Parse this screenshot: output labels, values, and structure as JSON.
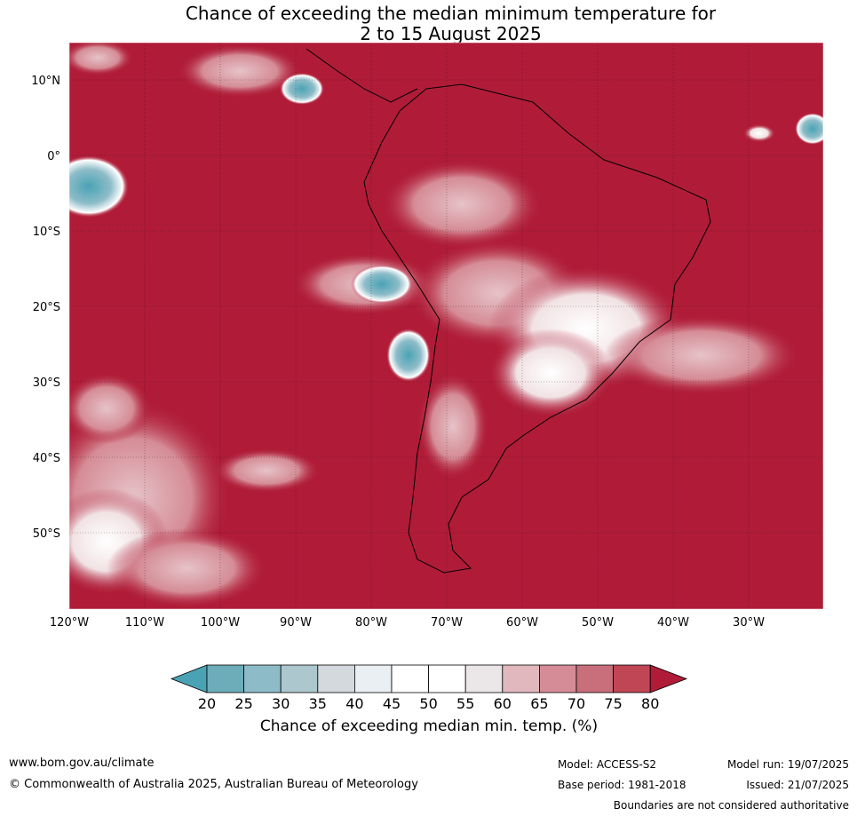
{
  "title": {
    "line1": "Chance of exceeding the median minimum temperature for",
    "line2": "2 to 15 August 2025"
  },
  "map": {
    "region": "South America",
    "lat_labels": [
      "10°N",
      "0°",
      "10°S",
      "20°S",
      "30°S",
      "40°S",
      "50°S"
    ],
    "lon_labels": [
      "120°W",
      "110°W",
      "100°W",
      "90°W",
      "80°W",
      "70°W",
      "60°W",
      "50°W",
      "40°W",
      "30°W"
    ],
    "dominant_category": "80",
    "colors": {
      "high": "#b01c38",
      "mid_high": "#d68a96",
      "neutral": "#ffffff",
      "low": "#4aa3b5"
    }
  },
  "colorbar": {
    "labels": [
      "20",
      "25",
      "30",
      "35",
      "40",
      "45",
      "50",
      "55",
      "60",
      "65",
      "70",
      "75",
      "80"
    ],
    "colors": [
      "#4aa3b5",
      "#6dadba",
      "#8dbcc8",
      "#adc7cf",
      "#d3d9dc",
      "#e9eff2",
      "#ffffff",
      "#ffffff",
      "#ebe7e8",
      "#e1b8bd",
      "#d58c96",
      "#c86f7b",
      "#c04656",
      "#b01c38"
    ],
    "title": "Chance of exceeding median min. temp. (%)"
  },
  "footer": {
    "website": "www.bom.gov.au/climate",
    "copyright": "© Commonwealth of Australia 2025, Australian Bureau of Meteorology",
    "model": "Model: ACCESS-S2",
    "base_period": "Base period: 1981-2018",
    "model_run": "Model run: 19/07/2025",
    "issued": "Issued: 21/07/2025",
    "disclaimer": "Boundaries are not considered authoritative"
  }
}
